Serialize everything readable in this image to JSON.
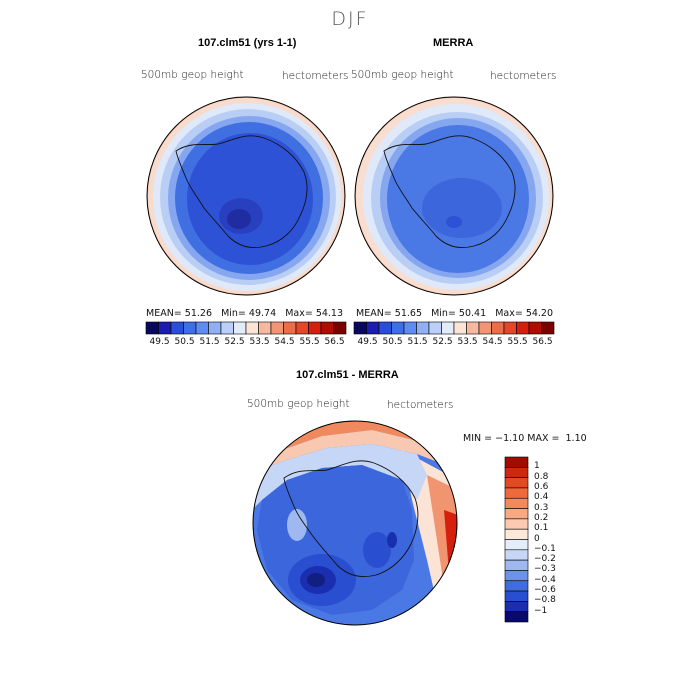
{
  "page": {
    "title": "DJF"
  },
  "panels": [
    {
      "title": "107.clm51 (yrs 1-1)",
      "variable": "500mb geop height",
      "units": "hectometers",
      "stats": {
        "mean_label": "MEAN=",
        "mean": "51.26",
        "min_label": "Min=",
        "min": "49.74",
        "max_label": "Max=",
        "max": "54.13"
      }
    },
    {
      "title": "MERRA",
      "variable": "500mb geop height",
      "units": "hectometers",
      "stats": {
        "mean_label": "MEAN=",
        "mean": "51.65",
        "min_label": "Min=",
        "min": "50.41",
        "max_label": "Max=",
        "max": "54.20"
      }
    }
  ],
  "colorbar_top": {
    "ticks": [
      "49.5",
      "50.5",
      "51.5",
      "52.5",
      "53.5",
      "54.5",
      "55.5",
      "56.5"
    ],
    "colors": [
      "#08085e",
      "#1c1cb0",
      "#2a4ed8",
      "#3c6fe8",
      "#5f8cf0",
      "#8fb0f5",
      "#bad0f8",
      "#e3ecfb",
      "#fbe3d6",
      "#f6b9a0",
      "#f19575",
      "#ec6d4a",
      "#e5462a",
      "#d52010",
      "#b00d00",
      "#7a0000"
    ]
  },
  "diff_panel": {
    "title": "107.clm51 - MERRA",
    "variable": "500mb geop height",
    "units": "hectometers",
    "stats": {
      "min_label": "MIN =",
      "min": "−1.10",
      "max_label": "MAX =",
      "max": "1.10"
    }
  },
  "colorbar_diff": {
    "ticks": [
      "1",
      "0.8",
      "0.6",
      "0.4",
      "0.3",
      "0.2",
      "0.1",
      "0",
      "−0.1",
      "−0.2",
      "−0.3",
      "−0.4",
      "−0.6",
      "−0.8",
      "−1"
    ],
    "colors": [
      "#a10c00",
      "#cc2a10",
      "#e24a22",
      "#ef6a3a",
      "#f5895a",
      "#f8a983",
      "#fbcab0",
      "#fde8da",
      "#e4edfb",
      "#c6d6f6",
      "#9fb9f0",
      "#6c93e8",
      "#3f6de0",
      "#2a4ed0",
      "#1a2fb0",
      "#08086e"
    ]
  }
}
